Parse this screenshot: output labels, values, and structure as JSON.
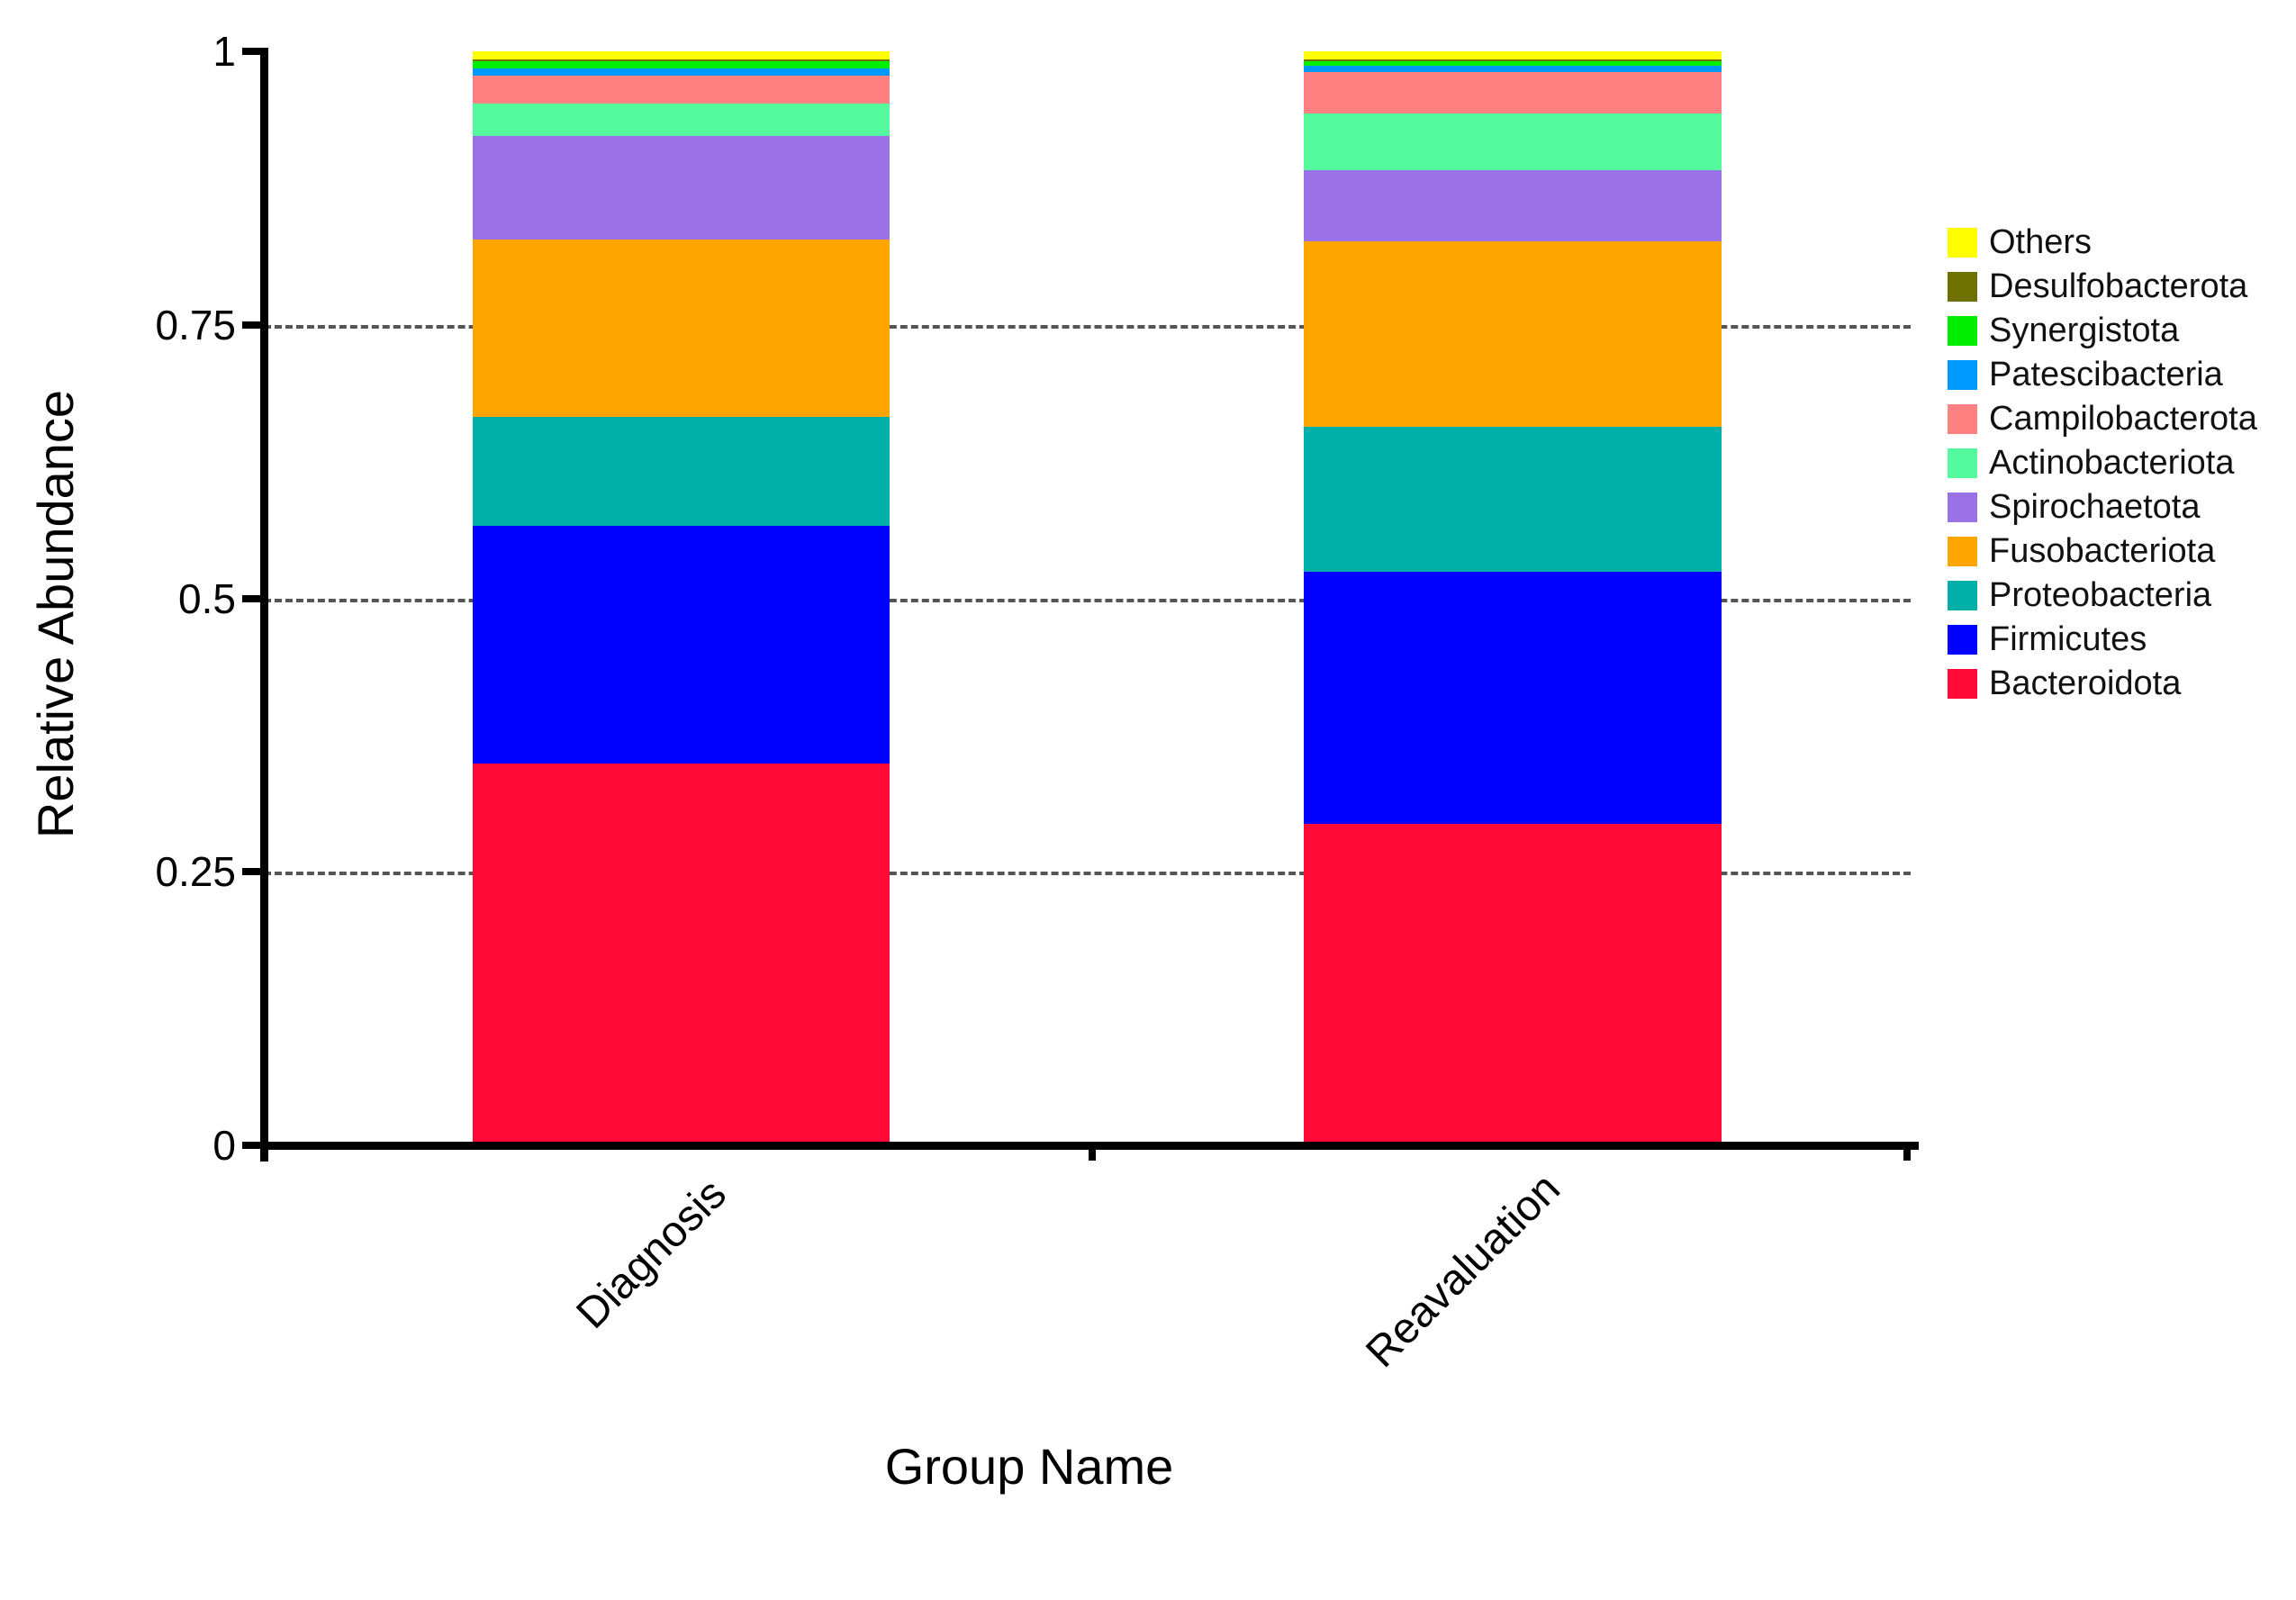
{
  "chart_data": {
    "type": "bar",
    "stacked": true,
    "orientation": "vertical",
    "title": "",
    "xlabel": "Group Name",
    "ylabel": "Relative Abundance",
    "ylim": [
      0,
      1
    ],
    "yticks": [
      0,
      0.25,
      0.5,
      0.75,
      1
    ],
    "ytick_labels": [
      "0",
      "0.25",
      "0.5",
      "0.75",
      "1"
    ],
    "gridline_values": [
      0.25,
      0.5,
      0.75
    ],
    "grid_style": "dashed",
    "legend_position": "right",
    "categories": [
      "Diagnosis",
      "Reavaluation"
    ],
    "series_bottom_to_top": [
      {
        "name": "Bacteroidota",
        "color": "#FF0A36",
        "values": [
          0.349,
          0.294
        ]
      },
      {
        "name": "Firmicutes",
        "color": "#0000FF",
        "values": [
          0.217,
          0.23
        ]
      },
      {
        "name": "Proteobacteria",
        "color": "#00B0A8",
        "values": [
          0.1,
          0.133
        ]
      },
      {
        "name": "Fusobacteriota",
        "color": "#FFA500",
        "values": [
          0.162,
          0.169
        ]
      },
      {
        "name": "Spirochaetota",
        "color": "#9B72E6",
        "values": [
          0.095,
          0.065
        ]
      },
      {
        "name": "Actinobacteriota",
        "color": "#54FA9E",
        "values": [
          0.029,
          0.052
        ]
      },
      {
        "name": "Campilobacterota",
        "color": "#FF8080",
        "values": [
          0.026,
          0.038
        ]
      },
      {
        "name": "Patescibacteria",
        "color": "#0099FF",
        "values": [
          0.006,
          0.006
        ]
      },
      {
        "name": "Synergistota",
        "color": "#00EE00",
        "values": [
          0.007,
          0.004
        ]
      },
      {
        "name": "Desulfobacterota",
        "color": "#6E7000",
        "values": [
          0.002,
          0.002
        ]
      },
      {
        "name": "Others",
        "color": "#FFFF00",
        "values": [
          0.007,
          0.007
        ]
      }
    ],
    "legend_labels_top_to_bottom": [
      "Others",
      "Desulfobacterota",
      "Synergistota",
      "Patescibacteria",
      "Campilobacterota",
      "Actinobacteriota",
      "Spirochaetota",
      "Fusobacteriota",
      "Proteobacteria",
      "Firmicutes",
      "Bacteroidota"
    ],
    "axis_color": "#000000",
    "grid_color": "#555555",
    "background_color": "#FFFFFF"
  },
  "layout_geometry": {
    "note": "stacked relative-abundance bar chart, two bars, legend at right"
  }
}
